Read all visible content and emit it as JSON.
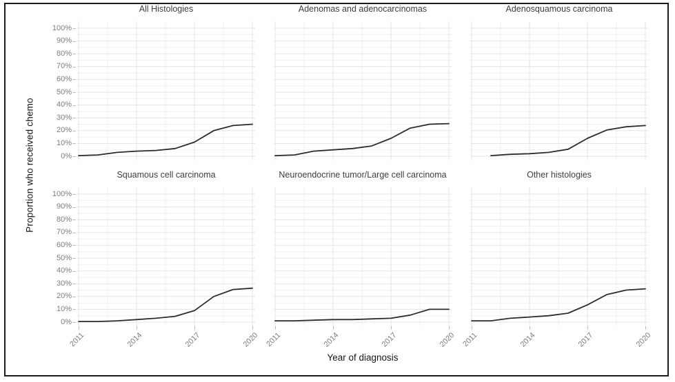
{
  "figure": {
    "x_axis_title": "Year of diagnosis",
    "y_axis_title": "Proportion who received chemo"
  },
  "chart_data": {
    "type": "line",
    "layout": "faceted small multiples, 2 rows x 3 columns, shared axes",
    "title": "",
    "xlabel": "Year of diagnosis",
    "ylabel": "Proportion who received chemo",
    "x": [
      2011,
      2012,
      2013,
      2014,
      2015,
      2016,
      2017,
      2018,
      2019,
      2020
    ],
    "x_tick_labels": [
      "2011",
      "2014",
      "2017",
      "2020"
    ],
    "x_major_ticks": [
      2011,
      2014,
      2017,
      2020
    ],
    "x_minor_ticks": [
      2012.5,
      2015.5,
      2018.5
    ],
    "xlim": [
      2011,
      2020
    ],
    "ylim": [
      0,
      100
    ],
    "y_major_ticks": [
      0,
      10,
      20,
      30,
      40,
      50,
      60,
      70,
      80,
      90,
      100
    ],
    "y_minor_ticks": [
      5,
      15,
      25,
      35,
      45,
      55,
      65,
      75,
      85,
      95
    ],
    "y_tick_labels": [
      "0%",
      "10%",
      "20%",
      "30%",
      "40%",
      "50%",
      "60%",
      "70%",
      "80%",
      "90%",
      "100%"
    ],
    "grid": "major and minor gridlines on, no panel border, white background",
    "legend": "none",
    "panels": [
      {
        "title": "All Histologies",
        "values_percent": [
          0.5,
          1,
          3,
          4,
          4.5,
          6,
          11,
          20,
          24,
          25
        ]
      },
      {
        "title": "Adenomas and adenocarcinomas",
        "values_percent": [
          0.5,
          1,
          4,
          5,
          6,
          8,
          14,
          22,
          25,
          25.5
        ]
      },
      {
        "title": "Adenosquamous carcinoma",
        "values_percent": [
          null,
          0.5,
          1.5,
          2,
          3,
          5.5,
          14,
          20.5,
          23,
          24
        ]
      },
      {
        "title": "Squamous cell carcinoma",
        "values_percent": [
          0.5,
          0.5,
          1,
          2,
          3,
          4.5,
          9,
          20,
          25.5,
          26.5
        ]
      },
      {
        "title": "Neuroendocrine tumor/Large cell carcinoma",
        "values_percent": [
          1,
          1,
          1.5,
          2,
          2,
          2.5,
          3,
          5.5,
          10,
          10
        ]
      },
      {
        "title": "Other histologies",
        "values_percent": [
          1,
          1,
          3,
          4,
          5,
          7,
          13.5,
          21.5,
          25,
          26
        ]
      }
    ]
  },
  "colors": {
    "line": "#2b2b2b",
    "grid_major": "#e3e3e3",
    "grid_minor": "#f1f1f1",
    "tick_mark": "#bdbdbd",
    "axis_text": "#7d7d7d",
    "facet_title_text": "#3d3d3d",
    "axis_title_text": "#151515",
    "border": "#1a1a1a",
    "background": "#ffffff"
  }
}
